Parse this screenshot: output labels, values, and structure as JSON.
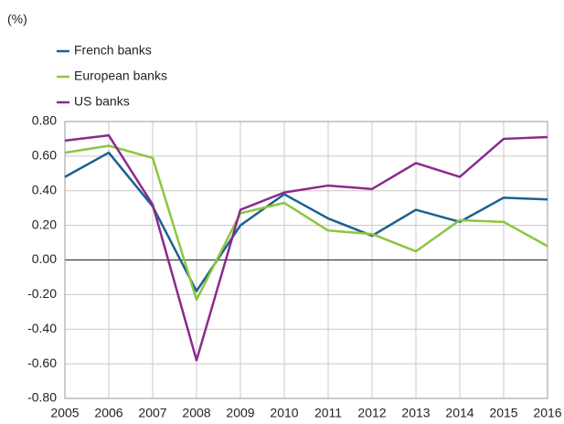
{
  "chart_data": {
    "type": "line",
    "y_label": "(%)",
    "x": [
      2005,
      2006,
      2007,
      2008,
      2009,
      2010,
      2011,
      2012,
      2013,
      2014,
      2015,
      2016
    ],
    "xlim": [
      2005,
      2016
    ],
    "xticks": [
      2005,
      2006,
      2007,
      2008,
      2009,
      2010,
      2011,
      2012,
      2013,
      2014,
      2015,
      2016
    ],
    "ylim": [
      -0.8,
      0.8
    ],
    "yticks": [
      {
        "value": -0.8,
        "label": "-0.80"
      },
      {
        "value": -0.6,
        "label": "-0.60"
      },
      {
        "value": -0.4,
        "label": "-0.40"
      },
      {
        "value": -0.2,
        "label": "-0.20"
      },
      {
        "value": 0,
        "label": "0.00"
      },
      {
        "value": 0.2,
        "label": "0.20"
      },
      {
        "value": 0.4,
        "label": "0.40"
      },
      {
        "value": 0.6,
        "label": "0.60"
      },
      {
        "value": 0.8,
        "label": "0.80"
      }
    ],
    "grid": true,
    "legend": "top-left",
    "series": [
      {
        "name": "French banks",
        "color": "#1b6190",
        "values": [
          0.48,
          0.62,
          0.31,
          -0.18,
          0.2,
          0.38,
          0.24,
          0.14,
          0.29,
          0.22,
          0.36,
          0.35
        ]
      },
      {
        "name": "European banks",
        "color": "#8cc63f",
        "values": [
          0.62,
          0.66,
          0.59,
          -0.23,
          0.27,
          0.33,
          0.17,
          0.15,
          0.05,
          0.23,
          0.22,
          0.08
        ]
      },
      {
        "name": "US banks",
        "color": "#8b2a8c",
        "values": [
          0.69,
          0.72,
          0.32,
          -0.58,
          0.29,
          0.39,
          0.43,
          0.41,
          0.56,
          0.48,
          0.7,
          0.71
        ]
      }
    ]
  }
}
